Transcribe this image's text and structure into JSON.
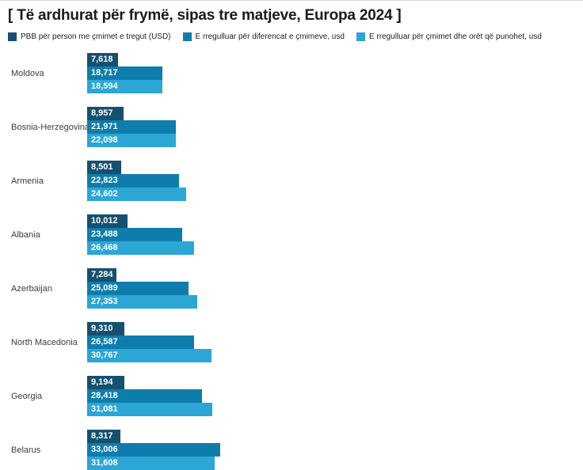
{
  "title": "[ Të ardhurat për frymë, sipas tre matjeve, Europa 2024 ]",
  "colors": {
    "series1": "#15506f",
    "series2": "#0f7dab",
    "series3": "#2ba6d5"
  },
  "legend": [
    {
      "label": "PBB për person me çmimet e tregut (USD)",
      "color": "#15506f"
    },
    {
      "label": "E rregulluar për diferencat e çmimeve, usd",
      "color": "#0f7dab"
    },
    {
      "label": "E rregulluar për çmimet dhe orët që punohet, usd",
      "color": "#2ba6d5"
    }
  ],
  "chart_data": {
    "type": "bar",
    "orientation": "horizontal",
    "title": "[ Të ardhurat për frymë, sipas tre matjeve, Europa 2024 ]",
    "categories": [
      "Moldova",
      "Bosnia-Herzegovina",
      "Armenia",
      "Albania",
      "Azerbaijan",
      "North Macedonia",
      "Georgia",
      "Belarus"
    ],
    "series": [
      {
        "name": "PBB për person me çmimet e tregut (USD)",
        "color": "#15506f",
        "values": [
          7618,
          8957,
          8501,
          10012,
          7284,
          9310,
          9194,
          8317
        ]
      },
      {
        "name": "E rregulluar për diferencat e çmimeve, usd",
        "color": "#0f7dab",
        "values": [
          18717,
          21971,
          22823,
          23488,
          25089,
          26587,
          28418,
          33006
        ]
      },
      {
        "name": "E rregulluar për çmimet dhe orët që punohet, usd",
        "color": "#2ba6d5",
        "values": [
          18594,
          22098,
          24602,
          26468,
          27353,
          30767,
          31081,
          31608
        ]
      }
    ],
    "value_labels": "inside-left, thousands comma separated, white bold",
    "xlim": [
      0,
      34000
    ],
    "grid": false,
    "legend_position": "top"
  }
}
